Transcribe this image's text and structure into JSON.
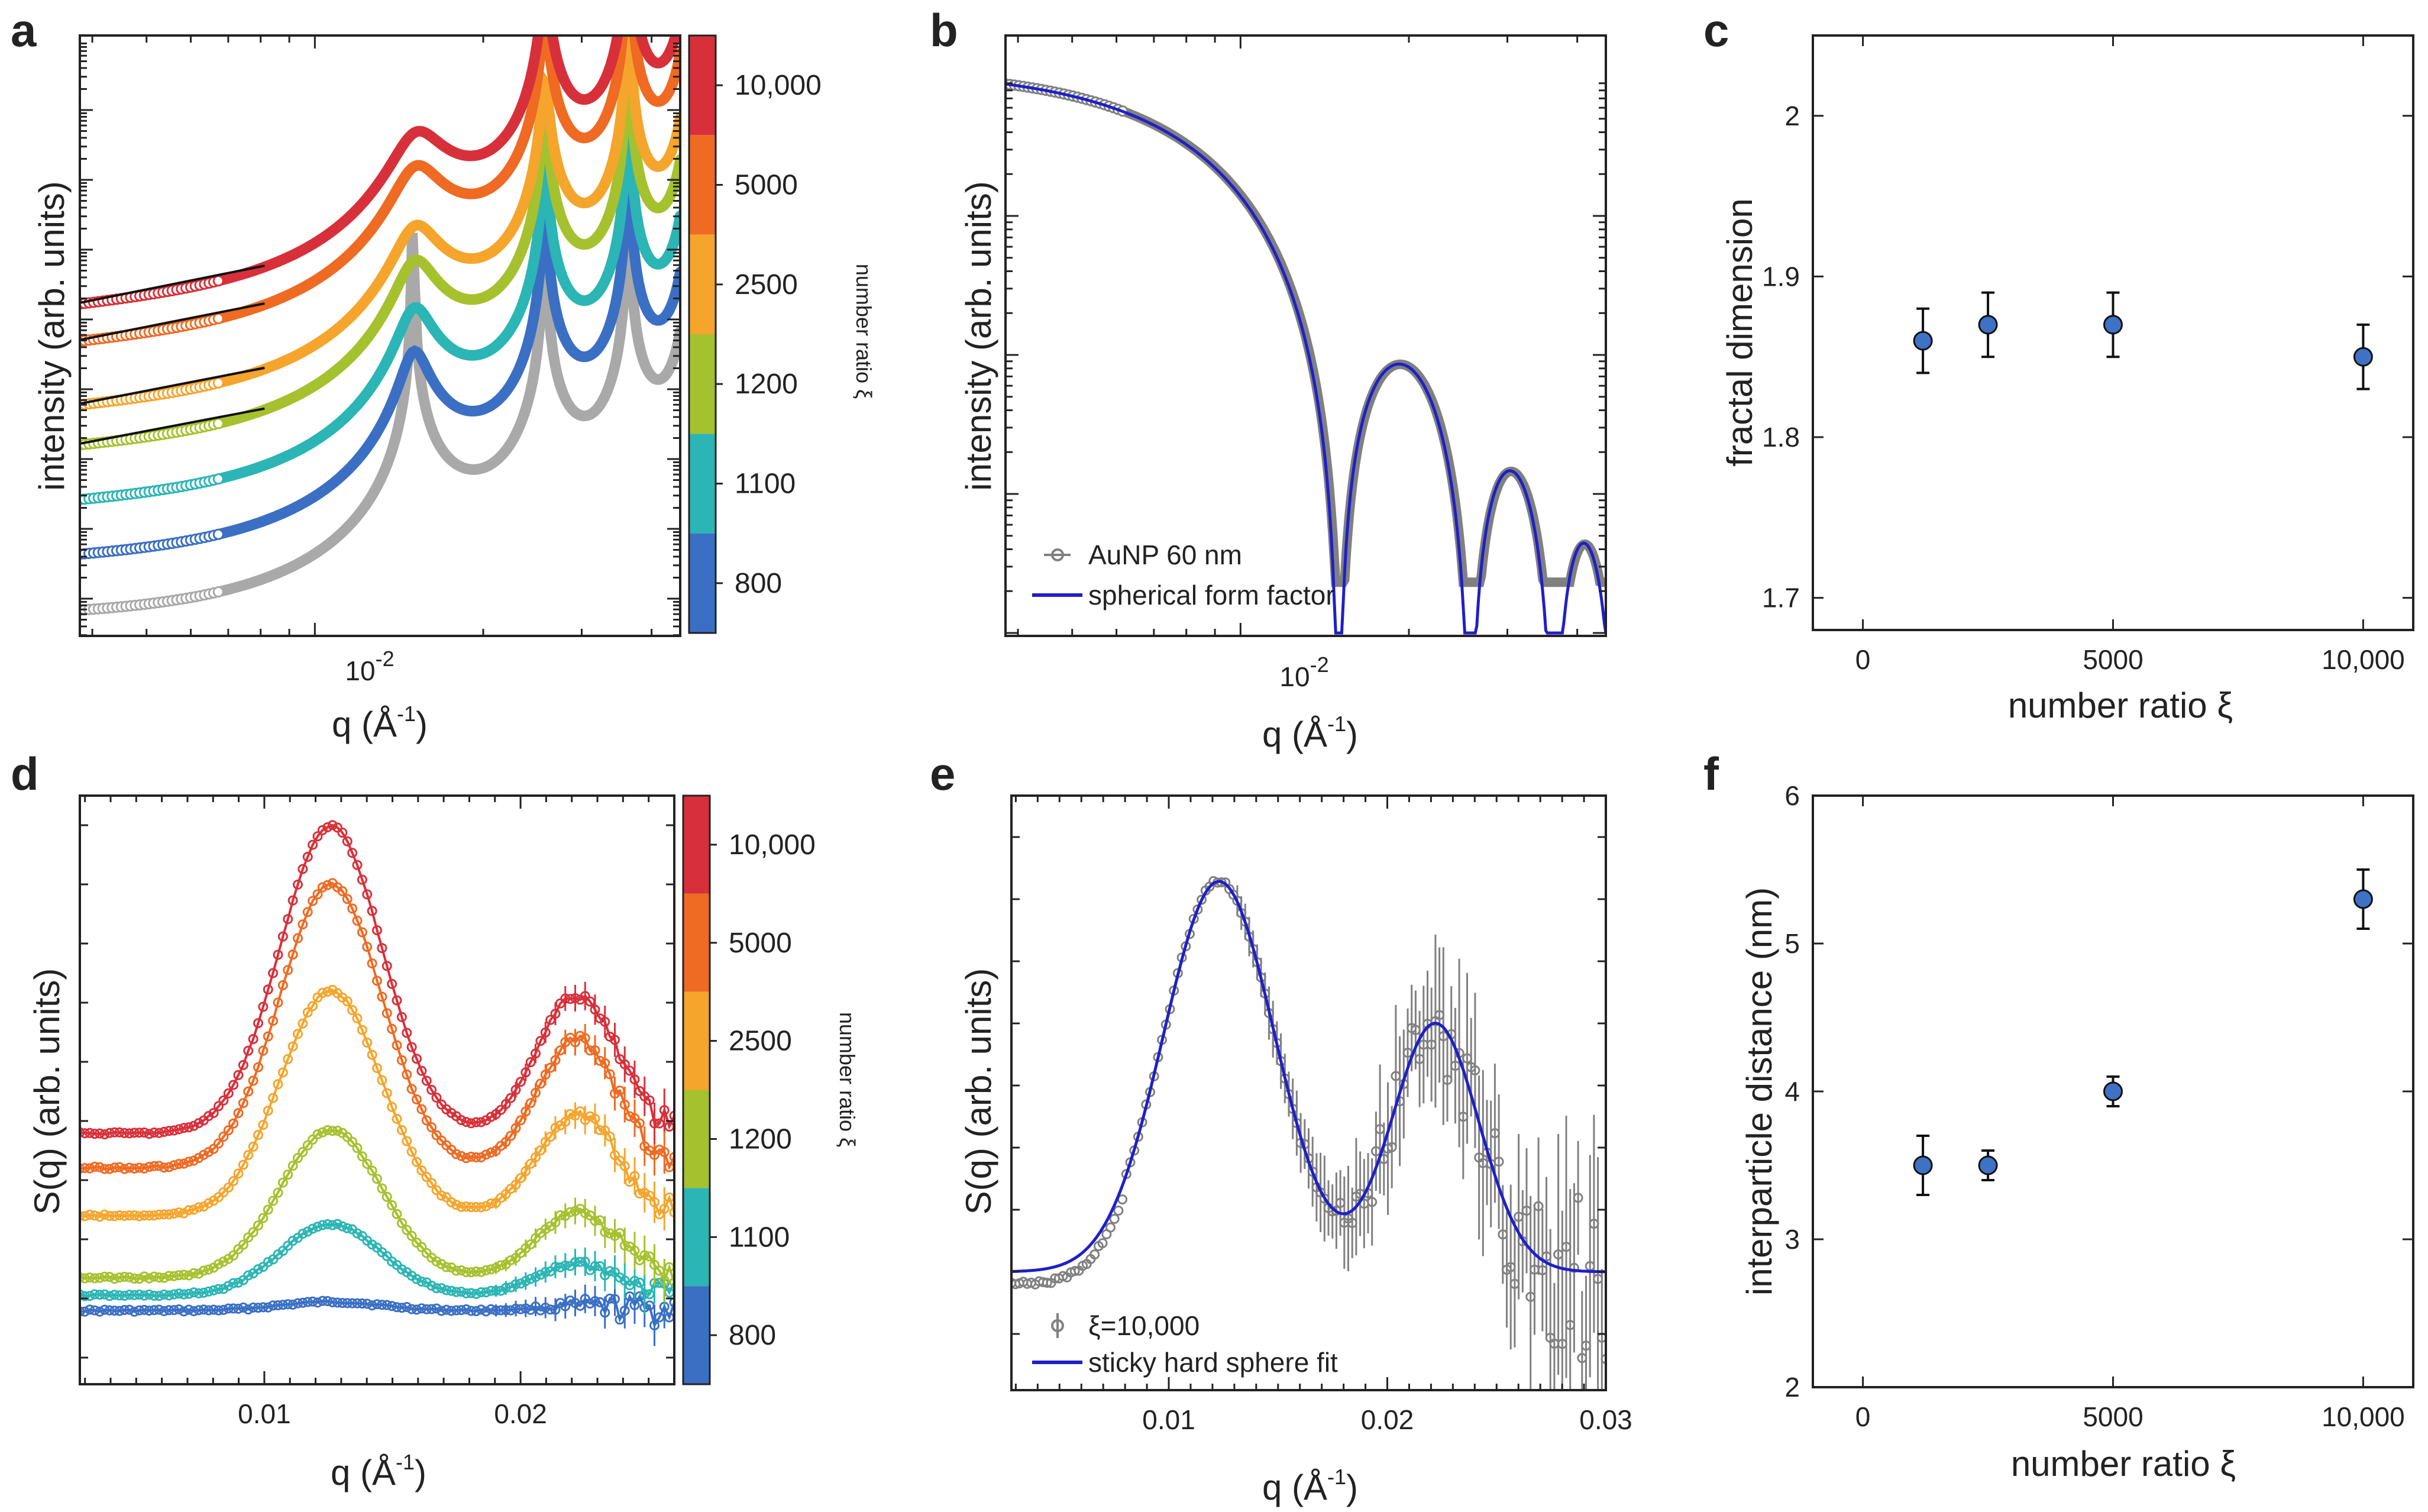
{
  "colors": {
    "xi_800": "#3a6fc4",
    "xi_1100": "#2bb5b5",
    "xi_1200": "#a6c12e",
    "xi_2500": "#f5a52c",
    "xi_5000": "#ef6a22",
    "xi_10000": "#d8303a",
    "aunp": "#a9a9a9",
    "data_gray": "#808080",
    "fit_blue": "#1f1fc9",
    "marker_blue": "#3d72c4"
  },
  "colorbar": {
    "label": "number ratio ξ",
    "ticks": [
      "10,000",
      "5000",
      "2500",
      "1200",
      "1100",
      "800"
    ]
  },
  "chart_data": [
    {
      "panel": "a",
      "type": "line",
      "xscale": "log",
      "yscale": "log",
      "xlabel": "q (Å-1)",
      "xlabel_base": "q (Å",
      "xlabel_sup": "-1",
      "xlabel_end": ")",
      "ylabel": "intensity (arb. units)",
      "xtick_base": "10",
      "xtick_sup": "-2",
      "xlim": [
        0.0038,
        0.045
      ],
      "series": [
        {
          "name": "AuNP",
          "offset": 0
        },
        {
          "name": "ξ=800",
          "offset": 1,
          "slope": null
        },
        {
          "name": "ξ=1100",
          "offset": 2,
          "slope": null
        },
        {
          "name": "ξ=1200",
          "offset": 3,
          "fractal_fit": true
        },
        {
          "name": "ξ=2500",
          "offset": 4,
          "fractal_fit": true
        },
        {
          "name": "ξ=5000",
          "offset": 5,
          "fractal_fit": true
        },
        {
          "name": "ξ=10,000",
          "offset": 6,
          "fractal_fit": true
        }
      ]
    },
    {
      "panel": "b",
      "type": "line",
      "xscale": "log",
      "yscale": "log",
      "xlabel": "q (Å-1)",
      "xlabel_base": "q (Å",
      "xlabel_sup": "-1",
      "xlabel_end": ")",
      "ylabel": "intensity (arb. units)",
      "xtick_base": "10",
      "xtick_sup": "-2",
      "legend": [
        "AuNP 60 nm",
        "spherical form factor"
      ],
      "legend_position": "bottom-left"
    },
    {
      "panel": "c",
      "type": "scatter",
      "xlabel": "number ratio ξ",
      "ylabel": "fractal dimension",
      "xlim": [
        -1000,
        11000
      ],
      "ylim": [
        1.68,
        2.05
      ],
      "xticks": [
        0,
        5000,
        10000
      ],
      "xtick_labels": [
        "0",
        "5000",
        "10,000"
      ],
      "yticks": [
        1.7,
        1.8,
        1.9,
        2.0
      ],
      "ytick_labels": [
        "1.7",
        "1.8",
        "1.9",
        "2"
      ],
      "x": [
        1200,
        2500,
        5000,
        10000
      ],
      "y": [
        1.86,
        1.87,
        1.87,
        1.85
      ],
      "yerr": [
        0.02,
        0.02,
        0.02,
        0.02
      ]
    },
    {
      "panel": "d",
      "type": "line",
      "xlabel": "q (Å-1)",
      "xlabel_base": "q (Å",
      "xlabel_sup": "-1",
      "xlabel_end": ")",
      "ylabel": "S(q) (arb. units)",
      "xlim": [
        0.0028,
        0.026
      ],
      "xticks": [
        0.01,
        0.02
      ],
      "xtick_labels": [
        "0.01",
        "0.02"
      ],
      "series": [
        {
          "name": "ξ=800",
          "peak1": 0.2
        },
        {
          "name": "ξ=1100",
          "peak1": 0.55
        },
        {
          "name": "ξ=1200",
          "peak1": 1.0
        },
        {
          "name": "ξ=2500",
          "peak1": 1.1
        },
        {
          "name": "ξ=5000",
          "peak1": 1.2
        },
        {
          "name": "ξ=10,000",
          "peak1": 1.3
        }
      ]
    },
    {
      "panel": "e",
      "type": "line",
      "xlabel": "q (Å-1)",
      "xlabel_base": "q (Å",
      "xlabel_sup": "-1",
      "xlabel_end": ")",
      "ylabel": "S(q) (arb. units)",
      "xlim": [
        0.0028,
        0.03
      ],
      "xticks": [
        0.01,
        0.02,
        0.03
      ],
      "xtick_labels": [
        "0.01",
        "0.02",
        "0.03"
      ],
      "legend": [
        "ξ=10,000",
        "sticky hard sphere fit"
      ],
      "legend_position": "bottom-left"
    },
    {
      "panel": "f",
      "type": "scatter",
      "xlabel": "number ratio ξ",
      "ylabel": "interparticle distance (nm)",
      "xlim": [
        -1000,
        11000
      ],
      "ylim": [
        2,
        6
      ],
      "xticks": [
        0,
        5000,
        10000
      ],
      "xtick_labels": [
        "0",
        "5000",
        "10,000"
      ],
      "yticks": [
        2,
        3,
        4,
        5,
        6
      ],
      "ytick_labels": [
        "2",
        "3",
        "4",
        "5",
        "6"
      ],
      "x": [
        1200,
        2500,
        5000,
        10000
      ],
      "y": [
        3.5,
        3.5,
        4.0,
        5.3
      ],
      "yerr": [
        0.2,
        0.1,
        0.1,
        0.2
      ]
    }
  ],
  "panel_labels": [
    "a",
    "b",
    "c",
    "d",
    "e",
    "f"
  ]
}
